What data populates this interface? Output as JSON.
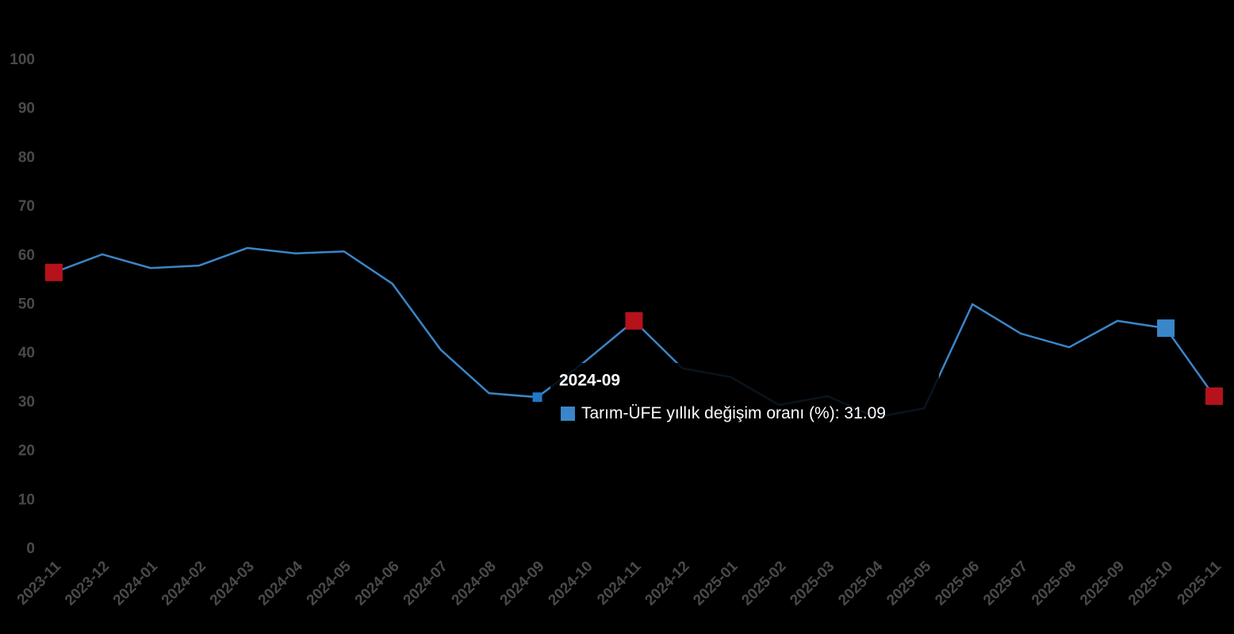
{
  "chart_data": {
    "type": "line",
    "categories": [
      "2023-11",
      "2023-12",
      "2024-01",
      "2024-02",
      "2024-03",
      "2024-04",
      "2024-05",
      "2024-06",
      "2024-07",
      "2024-08",
      "2024-09",
      "2024-10",
      "2024-11",
      "2024-12",
      "2025-01",
      "2025-02",
      "2025-03",
      "2025-04",
      "2025-05",
      "2025-06",
      "2025-07",
      "2025-08",
      "2025-09",
      "2025-10",
      "2025-11"
    ],
    "series": [
      {
        "name": "Tarım-ÜFE yıllık değişim oranı (%)",
        "color": "#3a86c8",
        "values": [
          56.6,
          60.3,
          57.5,
          58.0,
          61.6,
          60.5,
          60.9,
          54.3,
          40.8,
          31.9,
          31.09,
          38.5,
          46.7,
          37.0,
          35.2,
          29.5,
          31.3,
          27.0,
          28.8,
          50.1,
          44.1,
          41.3,
          46.7,
          45.2,
          31.3
        ]
      }
    ],
    "markers": [
      {
        "index": 0,
        "color": "#b5121b"
      },
      {
        "index": 12,
        "color": "#b5121b"
      },
      {
        "index": 23,
        "color": "#3a86c8"
      },
      {
        "index": 24,
        "color": "#b5121b"
      }
    ],
    "ylim": [
      0,
      100
    ],
    "yticks": [
      0,
      10,
      20,
      30,
      40,
      50,
      60,
      70,
      80,
      90,
      100
    ],
    "tooltip": {
      "index": 10
    }
  }
}
